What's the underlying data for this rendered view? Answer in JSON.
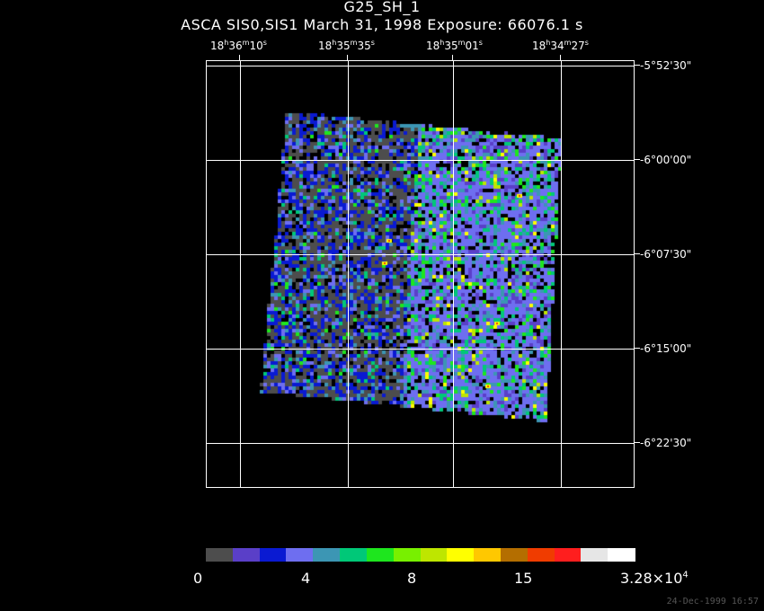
{
  "header": {
    "title": "G25_SH_1",
    "subtitle": "ASCA SIS0,SIS1 March 31, 1998 Exposure: 66076.1 s"
  },
  "ra_axis": [
    {
      "h": "18",
      "m": "36",
      "s": "10"
    },
    {
      "h": "18",
      "m": "35",
      "s": "35"
    },
    {
      "h": "18",
      "m": "35",
      "s": "01"
    },
    {
      "h": "18",
      "m": "34",
      "s": "27"
    }
  ],
  "dec_axis": [
    "-5°52'30\"",
    "-6°00'00\"",
    "-6°07'30\"",
    "-6°15'00\"",
    "-6°22'30\""
  ],
  "colorbar": {
    "colors": [
      "#4d4d4d",
      "#5a3fc8",
      "#0a1ad2",
      "#6e6ef0",
      "#3c96b4",
      "#00c878",
      "#1ee61e",
      "#78f000",
      "#bee600",
      "#ffff00",
      "#ffc800",
      "#b46e00",
      "#f03c00",
      "#ff1e1e",
      "#e6e6e6",
      "#ffffff"
    ],
    "labels": [
      "0",
      "4",
      "8",
      "15",
      "3.28×10"
    ],
    "top_label_exponent": "4"
  },
  "timestamp": "24-Dec-1999 16:57"
}
